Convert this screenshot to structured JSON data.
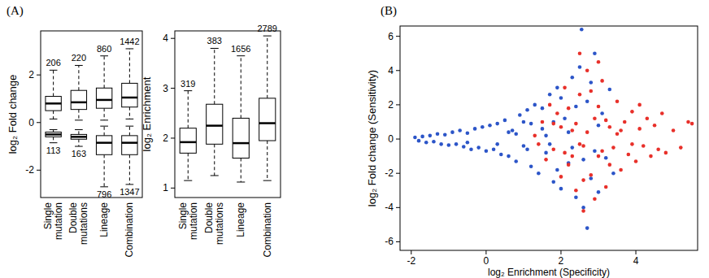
{
  "chart_data": [
    {
      "type": "box",
      "title": "(A)",
      "y_label": "log₂ Fold change",
      "categories": [
        "Single mutation",
        "Double mutations",
        "Lineage",
        "Combination"
      ],
      "ylim": [
        -3.15,
        3.85
      ],
      "yticks": [
        -2,
        0,
        2
      ],
      "series": [
        {
          "color": "#ffffff",
          "low": [
            0.15,
            0.1,
            0.1,
            0.15
          ],
          "q1": [
            0.5,
            0.55,
            0.6,
            0.65
          ],
          "median": [
            0.8,
            0.85,
            0.95,
            1.05
          ],
          "q3": [
            1.1,
            1.35,
            1.45,
            1.65
          ],
          "high": [
            2.2,
            2.4,
            2.8,
            3.1
          ],
          "counts": [
            206,
            220,
            860,
            1442
          ]
        },
        {
          "color": "#ffffff",
          "low": [
            -0.85,
            -1.0,
            -2.7,
            -2.6
          ],
          "q1": [
            -0.6,
            -0.7,
            -1.35,
            -1.35
          ],
          "median": [
            -0.5,
            -0.6,
            -0.85,
            -0.85
          ],
          "q3": [
            -0.4,
            -0.5,
            -0.55,
            -0.55
          ],
          "high": [
            -0.3,
            -0.3,
            -0.15,
            -0.15
          ],
          "counts": [
            113,
            163,
            796,
            1347
          ]
        }
      ]
    },
    {
      "type": "box",
      "y_label": "log₂ Enrichment",
      "categories": [
        "Single mutation",
        "Double mutations",
        "Lineage",
        "Combination"
      ],
      "ylim": [
        0.81,
        4.15
      ],
      "yticks": [
        1,
        2,
        3,
        4
      ],
      "series": [
        {
          "color": "#ffffff",
          "low": [
            1.15,
            1.25,
            1.12,
            1.15
          ],
          "q1": [
            1.7,
            1.88,
            1.6,
            1.95
          ],
          "median": [
            1.92,
            2.25,
            1.9,
            2.3
          ],
          "q3": [
            2.2,
            2.68,
            2.4,
            2.8
          ],
          "high": [
            2.95,
            3.8,
            3.65,
            4.05
          ],
          "counts": [
            319,
            383,
            1656,
            2789
          ]
        }
      ]
    },
    {
      "type": "scatter",
      "title": "(B)",
      "x_label": "log₂ Enrichment (Specificity)",
      "y_label": "log₂ Fold change (Sensitivity)",
      "xlim": [
        -2.3,
        5.65
      ],
      "xticks": [
        -2,
        0,
        2,
        4
      ],
      "ylim": [
        -6.5,
        6.6
      ],
      "yticks": [
        -6,
        -4,
        -2,
        0,
        2,
        4,
        6
      ],
      "series": [
        {
          "color": "#2c55c8",
          "x": [
            -1.9,
            -1.8,
            -1.7,
            -1.6,
            -1.5,
            -1.4,
            -1.3,
            -1.2,
            -1.1,
            -1.0,
            -0.9,
            -0.8,
            -0.7,
            -0.6,
            -0.5,
            -0.4,
            -0.3,
            -0.2,
            -0.1,
            0.0,
            0.1,
            0.2,
            0.3,
            0.4,
            0.5,
            0.6,
            0.7,
            0.8,
            0.9,
            1.0,
            1.1,
            1.2,
            1.3,
            1.4,
            1.5,
            1.6,
            1.7,
            1.8,
            1.9,
            2.0,
            2.1,
            2.2,
            2.3,
            2.4,
            2.5,
            2.6,
            2.7,
            2.8,
            2.9,
            3.0,
            3.1,
            3.2,
            3.3,
            3.4,
            2.55,
            2.7,
            1.0,
            1.2,
            0.3,
            -0.5,
            0.8,
            1.5,
            1.8,
            2.0,
            2.2,
            2.4,
            2.6,
            1.9,
            1.1,
            0.6,
            2.8,
            2.3,
            1.7,
            1.6,
            2.9,
            3.0
          ],
          "values": [
            0.1,
            -0.1,
            0.15,
            -0.2,
            0.2,
            -0.15,
            0.3,
            -0.3,
            0.25,
            -0.35,
            0.4,
            -0.3,
            0.5,
            -0.45,
            0.35,
            -0.6,
            0.6,
            -0.5,
            0.7,
            -0.7,
            0.8,
            -0.6,
            0.9,
            -0.9,
            1.1,
            -1.0,
            0.5,
            -1.3,
            1.4,
            -0.4,
            1.7,
            -1.6,
            2.0,
            -2.0,
            0.6,
            -0.8,
            2.6,
            -2.5,
            3.0,
            -2.9,
            1.2,
            -1.4,
            3.6,
            -3.4,
            4.2,
            -4.0,
            2.2,
            -2.3,
            5.0,
            -3.1,
            1.5,
            -1.1,
            2.9,
            -2.0,
            6.4,
            -5.2,
            1.0,
            0.9,
            -0.3,
            -0.2,
            0.3,
            1.8,
            1.0,
            2.4,
            0.4,
            1.9,
            -1.2,
            -1.8,
            -0.6,
            0.4,
            3.3,
            -0.5,
            -0.3,
            0.2,
            -0.7,
            0.8
          ]
        },
        {
          "color": "#e8302a",
          "x": [
            1.3,
            1.4,
            1.5,
            1.6,
            1.7,
            1.8,
            1.9,
            2.0,
            2.1,
            2.2,
            2.3,
            2.4,
            2.5,
            2.6,
            2.7,
            2.8,
            2.9,
            3.0,
            3.1,
            3.2,
            3.3,
            3.4,
            3.5,
            3.6,
            3.7,
            3.8,
            3.9,
            4.0,
            4.1,
            4.2,
            4.3,
            4.4,
            4.5,
            4.6,
            4.7,
            4.8,
            5.0,
            5.2,
            5.4,
            5.5,
            2.2,
            2.4,
            2.6,
            2.8,
            3.0,
            3.2,
            2.0,
            2.3,
            2.5,
            2.7,
            2.9,
            3.1,
            3.3,
            3.5,
            2.1,
            1.8,
            3.6,
            3.9,
            4.1,
            2.5,
            2.6,
            3.0
          ],
          "values": [
            0.2,
            -0.3,
            1.0,
            -1.2,
            2.0,
            -0.6,
            1.5,
            -2.2,
            3.0,
            -1.5,
            0.5,
            -3.0,
            2.6,
            -0.4,
            4.0,
            -2.1,
            1.2,
            -1.0,
            3.4,
            -2.8,
            0.7,
            -0.5,
            2.2,
            -1.8,
            1.0,
            -0.9,
            1.6,
            -1.3,
            0.6,
            -0.4,
            1.2,
            -1.0,
            0.8,
            -0.6,
            1.5,
            -0.8,
            0.5,
            -0.5,
            1.0,
            0.9,
            1.8,
            0.9,
            -2.4,
            2.8,
            1.9,
            1.1,
            0.7,
            -1.0,
            -0.3,
            0.4,
            -3.5,
            -0.7,
            -1.5,
            0.3,
            -0.8,
            0.9,
            0.5,
            -0.3,
            2.0,
            5.0,
            -4.2,
            4.5
          ]
        }
      ]
    }
  ]
}
